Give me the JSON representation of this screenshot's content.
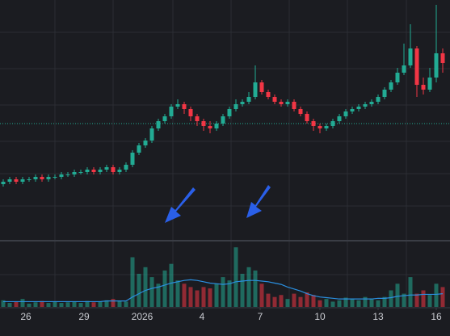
{
  "chart_data": {
    "type": "candlestick",
    "open": [
      24,
      25,
      26,
      25,
      26,
      26,
      27,
      26,
      27,
      27,
      28,
      28,
      29,
      29,
      30,
      29,
      30,
      31,
      29,
      30,
      32,
      37,
      40,
      42,
      47,
      50,
      52,
      56,
      57,
      55,
      52,
      50,
      48,
      47,
      49,
      52,
      55,
      57,
      58,
      60,
      66,
      62,
      60,
      58,
      57,
      58,
      55,
      53,
      50,
      48,
      47,
      48,
      50,
      52,
      54,
      55,
      56,
      57,
      58,
      60,
      63,
      66,
      70,
      73,
      80,
      65,
      63,
      68,
      78
    ],
    "high": [
      26,
      27,
      27,
      27,
      27,
      28,
      28,
      28,
      28,
      29,
      29,
      30,
      30,
      31,
      31,
      31,
      32,
      32,
      31,
      33,
      38,
      41,
      43,
      48,
      51,
      53,
      57,
      59,
      58,
      56,
      53,
      51,
      50,
      50,
      53,
      56,
      59,
      59,
      62,
      73,
      67,
      63,
      61,
      59,
      59,
      59,
      56,
      54,
      51,
      49,
      49,
      51,
      53,
      55,
      56,
      57,
      58,
      59,
      61,
      64,
      67,
      72,
      82,
      90,
      81,
      68,
      72,
      98,
      80
    ],
    "low": [
      23,
      24,
      24,
      24,
      25,
      25,
      25,
      25,
      26,
      26,
      27,
      27,
      28,
      28,
      28,
      28,
      29,
      28,
      28,
      29,
      31,
      36,
      39,
      41,
      46,
      49,
      51,
      55,
      53,
      50,
      48,
      46,
      45,
      46,
      48,
      51,
      54,
      56,
      57,
      59,
      61,
      59,
      57,
      56,
      56,
      54,
      52,
      49,
      46,
      45,
      46,
      47,
      49,
      51,
      53,
      54,
      55,
      56,
      57,
      59,
      62,
      65,
      69,
      72,
      60,
      61,
      62,
      66,
      70
    ],
    "close": [
      25,
      26,
      25,
      26,
      26,
      27,
      26,
      27,
      27,
      28,
      28,
      29,
      29,
      30,
      29,
      30,
      31,
      29,
      30,
      32,
      37,
      40,
      42,
      47,
      50,
      52,
      56,
      57,
      55,
      52,
      50,
      48,
      47,
      49,
      52,
      55,
      57,
      58,
      60,
      66,
      62,
      60,
      58,
      57,
      58,
      55,
      53,
      50,
      48,
      47,
      48,
      50,
      52,
      54,
      55,
      56,
      57,
      58,
      60,
      63,
      66,
      70,
      73,
      80,
      65,
      63,
      68,
      78,
      74
    ],
    "volume": [
      10,
      6,
      8,
      12,
      5,
      7,
      9,
      6,
      8,
      6,
      7,
      8,
      6,
      9,
      7,
      8,
      10,
      12,
      9,
      8,
      75,
      50,
      60,
      45,
      35,
      55,
      65,
      40,
      35,
      30,
      25,
      30,
      28,
      35,
      45,
      40,
      90,
      50,
      60,
      55,
      35,
      20,
      15,
      18,
      12,
      20,
      15,
      22,
      18,
      10,
      12,
      8,
      10,
      14,
      12,
      10,
      15,
      12,
      10,
      15,
      25,
      35,
      20,
      45,
      20,
      25,
      18,
      35,
      30
    ],
    "volume_ma": [
      8,
      8,
      8,
      8,
      8,
      8,
      8,
      8,
      8,
      8,
      8,
      8,
      8,
      8,
      8,
      8,
      9,
      9,
      9,
      9,
      15,
      20,
      25,
      28,
      30,
      33,
      36,
      38,
      40,
      41,
      40,
      38,
      36,
      35,
      34,
      35,
      38,
      39,
      40,
      40,
      39,
      38,
      36,
      34,
      30,
      27,
      24,
      20,
      17,
      15,
      14,
      13,
      12,
      12,
      12,
      12,
      12,
      12,
      13,
      13,
      14,
      16,
      17,
      18,
      18,
      19,
      19,
      19,
      20
    ],
    "xlim": [
      -0.5,
      69.125
    ],
    "ylim": [
      0,
      100
    ],
    "volume_ylim": [
      0,
      100
    ],
    "xticks": [
      {
        "value": 3.5,
        "label": "26"
      },
      {
        "value": 12.5,
        "label": "29"
      },
      {
        "value": 21.5,
        "label": "2026"
      },
      {
        "value": 30.75,
        "label": "4"
      },
      {
        "value": 39.75,
        "label": "7"
      },
      {
        "value": 49,
        "label": "10"
      },
      {
        "value": 58,
        "label": "13"
      },
      {
        "value": 67,
        "label": "16"
      }
    ],
    "price_line": 49,
    "up_color": "#22ab94",
    "down_color": "#f23645",
    "ma_color": "#2a8fe0"
  }
}
